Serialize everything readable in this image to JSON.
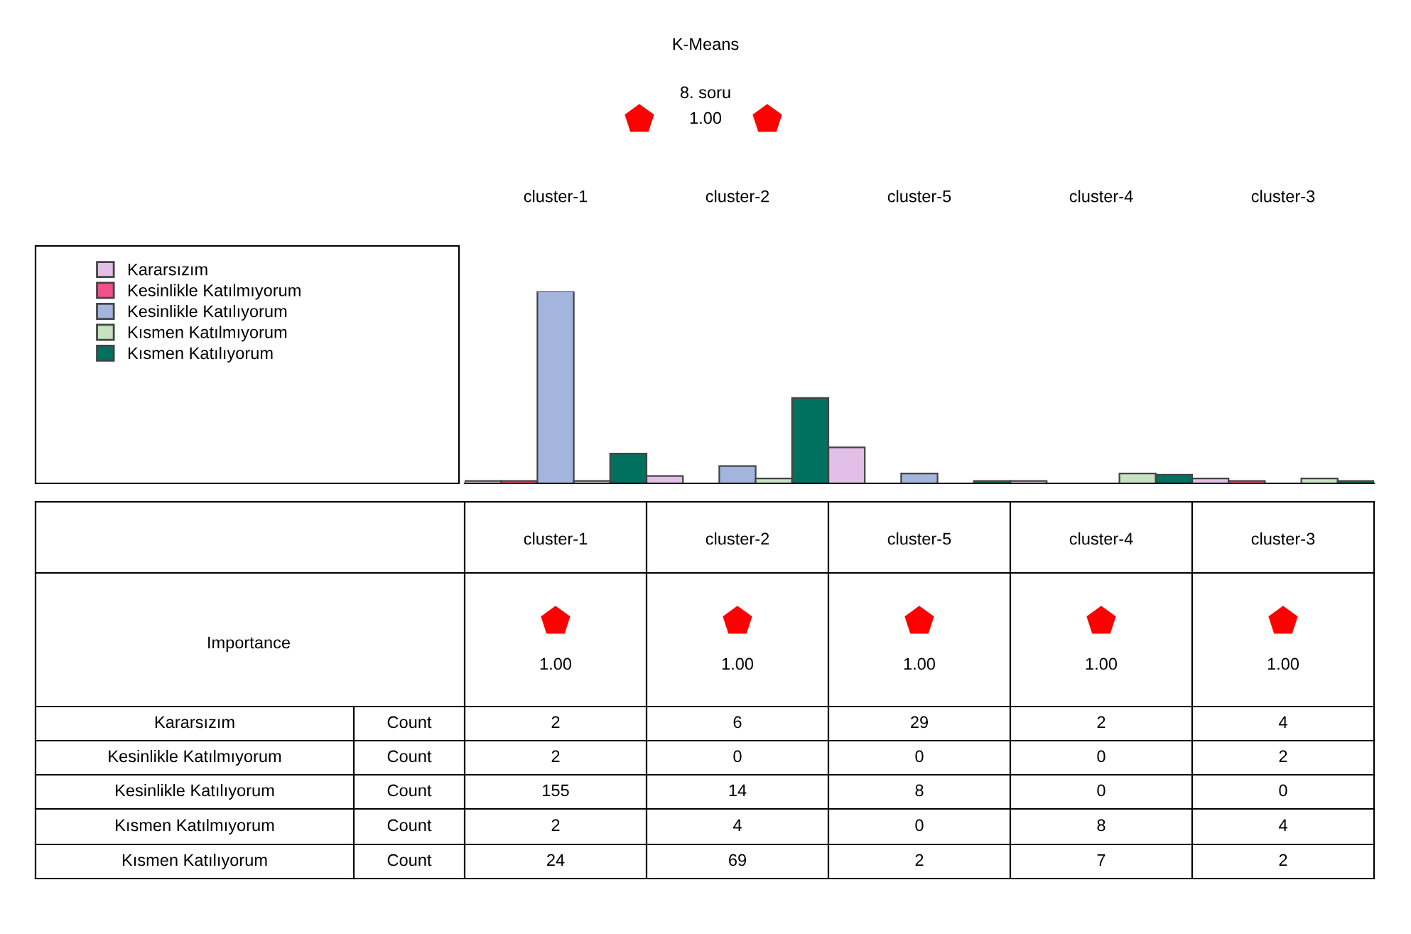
{
  "chart_data": {
    "type": "bar",
    "title": "K-Means",
    "subtitle": "8. soru",
    "categories": [
      "cluster-1",
      "cluster-2",
      "cluster-5",
      "cluster-4",
      "cluster-3"
    ],
    "series": [
      {
        "name": "Kararsızım",
        "color": "#e2bfe6",
        "values": [
          2,
          6,
          29,
          2,
          4
        ]
      },
      {
        "name": "Kesinlikle Katılmıyorum",
        "color": "#f0508c",
        "values": [
          2,
          0,
          0,
          0,
          2
        ]
      },
      {
        "name": "Kesinlikle Katılıyorum",
        "color": "#a3b5dc",
        "values": [
          155,
          14,
          8,
          0,
          0
        ]
      },
      {
        "name": "Kısmen Katılmıyorum",
        "color": "#c6e2c2",
        "values": [
          2,
          4,
          0,
          8,
          4
        ]
      },
      {
        "name": "Kısmen Katılıyorum",
        "color": "#00705f",
        "values": [
          24,
          69,
          2,
          7,
          2
        ]
      }
    ],
    "data_labels": true,
    "legend": "left",
    "grid": false,
    "annotations": [
      "1.00",
      "Importance",
      "1.00",
      "1.00",
      "1.00",
      "1.00",
      "1.00",
      "Count",
      "Count",
      "Count",
      "Count",
      "Count"
    ]
  }
}
